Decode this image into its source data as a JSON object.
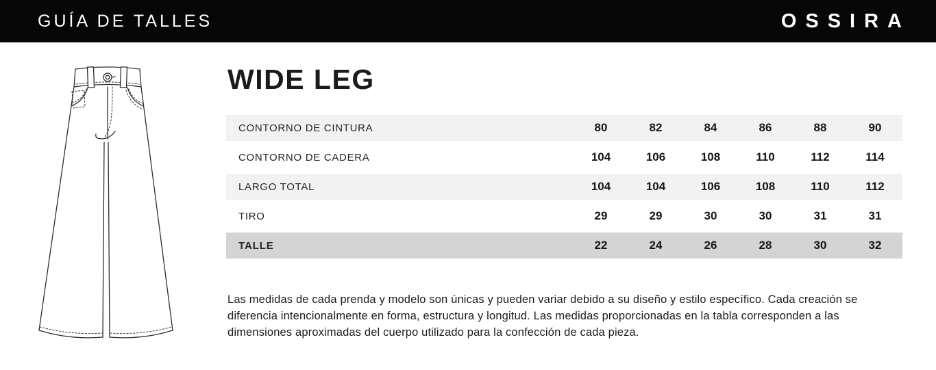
{
  "header": {
    "title": "GUÍA DE TALLES",
    "brand": "OSSIRA"
  },
  "product": {
    "title": "WIDE LEG"
  },
  "size_table": {
    "rows": [
      {
        "label": "CONTORNO DE CINTURA",
        "values": [
          "80",
          "82",
          "84",
          "86",
          "88",
          "90"
        ],
        "highlight": false
      },
      {
        "label": "CONTORNO DE CADERA",
        "values": [
          "104",
          "106",
          "108",
          "110",
          "112",
          "114"
        ],
        "highlight": false
      },
      {
        "label": "LARGO TOTAL",
        "values": [
          "104",
          "104",
          "106",
          "108",
          "110",
          "112"
        ],
        "highlight": false
      },
      {
        "label": "TIRO",
        "values": [
          "29",
          "29",
          "30",
          "30",
          "31",
          "31"
        ],
        "highlight": false
      },
      {
        "label": "TALLE",
        "values": [
          "22",
          "24",
          "26",
          "28",
          "30",
          "32"
        ],
        "highlight": true
      }
    ]
  },
  "disclaimer": "Las medidas de cada prenda y modelo son únicas y pueden variar debido a su diseño y estilo específico. Cada creación se diferencia intencionalmente en forma, estructura y longitud. Las medidas proporcionadas en la tabla corresponden a las dimensiones aproximadas del cuerpo utilizado para la confección de cada pieza.",
  "illustration": "wide-leg-pants-technical-drawing",
  "colors": {
    "header_bg": "#060606",
    "header_text": "#ffffff",
    "row_alt_bg": "#f2f2f2",
    "row_highlight_bg": "#d4d4d4",
    "text": "#1c1c1c"
  }
}
